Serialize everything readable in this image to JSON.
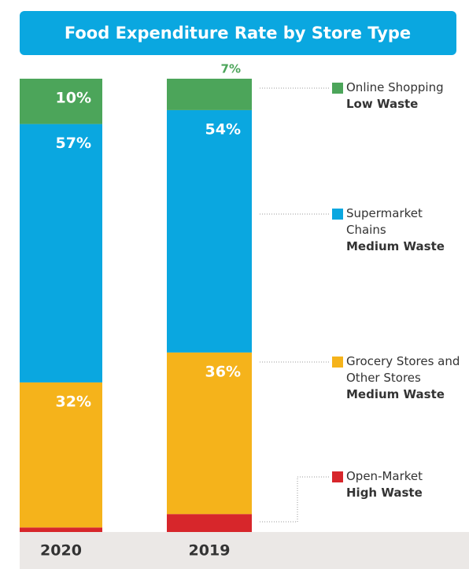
{
  "chart_data": {
    "type": "stacked-bar",
    "title": "Food Expenditure Rate by Store Type",
    "categories": [
      "2020",
      "2019"
    ],
    "series": [
      {
        "name": "Open-Market",
        "waste": "High Waste",
        "color": "#d7262b",
        "values": [
          1,
          4
        ],
        "value_labels": [
          "1%",
          "4%"
        ]
      },
      {
        "name": "Grocery Stores and Other Stores",
        "waste": "Medium Waste",
        "color": "#f5b31b",
        "values": [
          32,
          36
        ],
        "value_labels": [
          "32%",
          "36%"
        ]
      },
      {
        "name": "Supermarket Chains",
        "waste": "Medium Waste",
        "color": "#0aa7e0",
        "values": [
          57,
          54
        ],
        "value_labels": [
          "57%",
          "54%"
        ]
      },
      {
        "name": "Online Shopping",
        "waste": "Low Waste",
        "color": "#4ca55a",
        "values": [
          10,
          7
        ],
        "value_labels": [
          "10%",
          "7%"
        ]
      }
    ]
  }
}
